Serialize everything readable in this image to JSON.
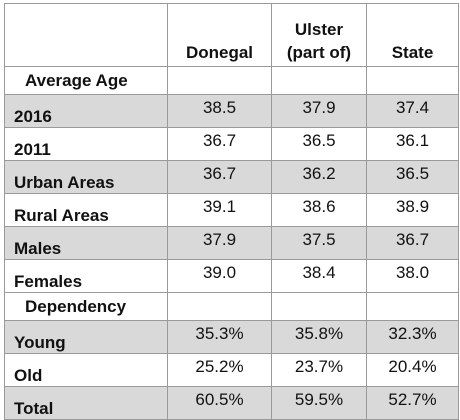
{
  "table": {
    "corner": "",
    "columns": [
      {
        "lines": [
          "Donegal"
        ]
      },
      {
        "lines": [
          "Ulster",
          "(part of)"
        ]
      },
      {
        "lines": [
          "State"
        ]
      }
    ],
    "sections": [
      {
        "title": "Average Age",
        "rows": [
          {
            "label": "2016",
            "values": [
              "38.5",
              "37.9",
              "37.4"
            ]
          },
          {
            "label": "2011",
            "values": [
              "36.7",
              "36.5",
              "36.1"
            ]
          },
          {
            "label": "Urban Areas",
            "values": [
              "36.7",
              "36.2",
              "36.5"
            ]
          },
          {
            "label": "Rural Areas",
            "values": [
              "39.1",
              "38.6",
              "38.9"
            ]
          },
          {
            "label": "Males",
            "values": [
              "37.9",
              "37.5",
              "36.7"
            ]
          },
          {
            "label": "Females",
            "values": [
              "39.0",
              "38.4",
              "38.0"
            ]
          }
        ]
      },
      {
        "title": "Dependency",
        "rows": [
          {
            "label": "Young",
            "values": [
              "35.3%",
              "35.8%",
              "32.3%"
            ]
          },
          {
            "label": "Old",
            "values": [
              "25.2%",
              "23.7%",
              "20.4%"
            ]
          },
          {
            "label": "Total",
            "values": [
              "60.5%",
              "59.5%",
              "52.7%"
            ]
          }
        ]
      }
    ]
  },
  "colors": {
    "shaded_row": "#d9d9d9",
    "plain_row": "#ffffff",
    "border": "#9a9a9a"
  }
}
